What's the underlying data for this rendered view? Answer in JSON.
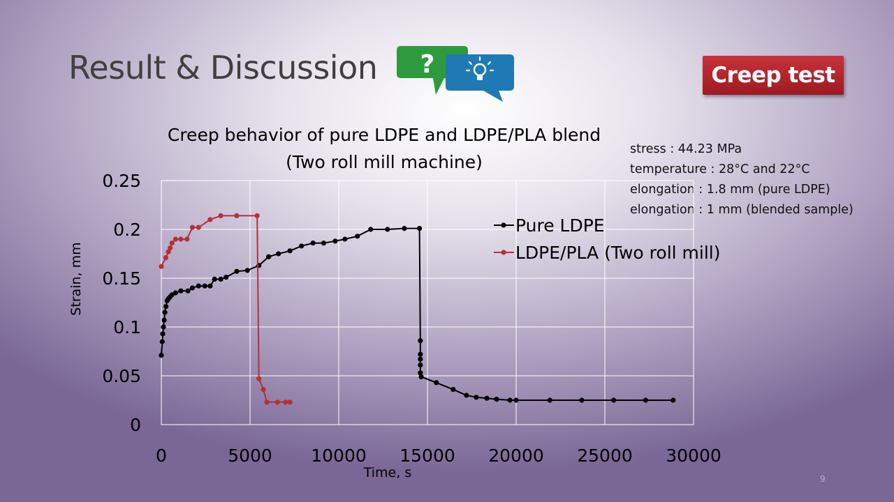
{
  "slide": {
    "title": "Result & Discussion",
    "badge": "Creep test",
    "page_number": "9",
    "icon": "question-and-lightbulb-speech-bubbles-icon",
    "colors": {
      "badge": "#b1232c",
      "bubble_green": "#2e9a3e",
      "bubble_blue": "#1f79b5"
    }
  },
  "conditions": [
    "stress : 44.23 MPa",
    "temperature : 28°C and 22°C",
    "elongation : 1.8 mm (pure LDPE)",
    "elongation : 1 mm (blended sample)"
  ],
  "chart_data": {
    "type": "scatter",
    "title": "Creep behavior of pure LDPE and LDPE/PLA blend",
    "subtitle": "(Two roll mill machine)",
    "xlabel": "Time, s",
    "ylabel": "Strain, mm",
    "xlim": [
      0,
      30000
    ],
    "ylim": [
      0,
      0.25
    ],
    "x_ticks": [
      "0",
      "5000",
      "10000",
      "15000",
      "20000",
      "25000",
      "30000"
    ],
    "y_ticks": [
      "0",
      "0.05",
      "0.1",
      "0.15",
      "0.2",
      "0.25"
    ],
    "grid": true,
    "legend_position": "right",
    "series": [
      {
        "name": "Pure LDPE",
        "color": "#000000",
        "x": [
          0,
          50,
          80,
          120,
          160,
          200,
          260,
          330,
          400,
          500,
          600,
          800,
          1100,
          1500,
          1750,
          2100,
          2450,
          2750,
          3000,
          3350,
          3650,
          4250,
          4850,
          5500,
          6050,
          6600,
          7250,
          7900,
          8550,
          9150,
          9800,
          10350,
          11050,
          11800,
          12750,
          13700,
          14550,
          14600,
          14600,
          14600,
          14600,
          14600,
          14650,
          15500,
          16450,
          17200,
          17750,
          18350,
          18900,
          19650,
          20000,
          21900,
          23700,
          25500,
          27300,
          28850
        ],
        "y": [
          0.071,
          0.085,
          0.093,
          0.1,
          0.107,
          0.115,
          0.121,
          0.127,
          0.129,
          0.131,
          0.133,
          0.135,
          0.137,
          0.137,
          0.14,
          0.142,
          0.142,
          0.142,
          0.149,
          0.149,
          0.151,
          0.157,
          0.158,
          0.163,
          0.172,
          0.175,
          0.178,
          0.183,
          0.186,
          0.186,
          0.188,
          0.19,
          0.193,
          0.2,
          0.2,
          0.201,
          0.201,
          0.086,
          0.072,
          0.067,
          0.061,
          0.053,
          0.049,
          0.043,
          0.036,
          0.03,
          0.028,
          0.027,
          0.026,
          0.025,
          0.025,
          0.025,
          0.025,
          0.025,
          0.025,
          0.025
        ]
      },
      {
        "name": "LDPE/PLA (Two roll mill)",
        "color": "#b5303a",
        "x": [
          0,
          250,
          400,
          500,
          600,
          800,
          1100,
          1450,
          1750,
          2100,
          2750,
          3350,
          4250,
          5400,
          5500,
          5750,
          5950,
          6550,
          7000,
          7250
        ],
        "y": [
          0.162,
          0.171,
          0.177,
          0.181,
          0.186,
          0.19,
          0.19,
          0.19,
          0.202,
          0.202,
          0.21,
          0.214,
          0.214,
          0.214,
          0.047,
          0.036,
          0.023,
          0.023,
          0.023,
          0.023
        ]
      }
    ]
  }
}
